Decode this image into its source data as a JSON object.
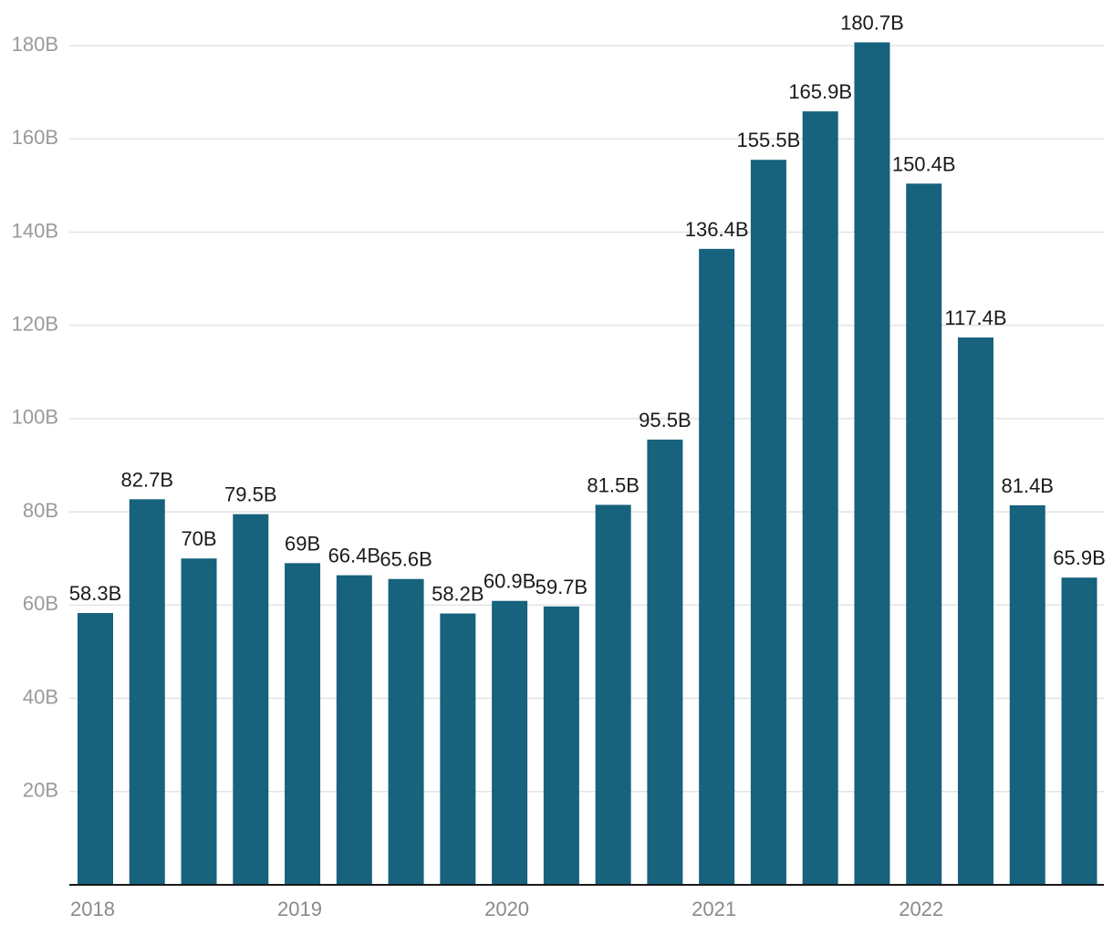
{
  "chart_data": {
    "type": "bar",
    "title": "",
    "xlabel": "",
    "ylabel": "",
    "ylim": [
      0,
      180
    ],
    "y_ticks": [
      20,
      40,
      60,
      80,
      100,
      120,
      140,
      160,
      180
    ],
    "y_tick_labels": [
      "20B",
      "40B",
      "60B",
      "80B",
      "100B",
      "120B",
      "140B",
      "160B",
      "180B"
    ],
    "x_tick_labels": [
      "2018",
      "2019",
      "2020",
      "2021",
      "2022"
    ],
    "grid": true,
    "bar_color": "#17627d",
    "values": [
      58.3,
      82.7,
      70,
      79.5,
      69,
      66.4,
      65.6,
      58.2,
      60.9,
      59.7,
      81.5,
      95.5,
      136.4,
      155.5,
      165.9,
      180.7,
      150.4,
      117.4,
      81.4,
      65.9
    ],
    "value_labels": [
      "58.3B",
      "82.7B",
      "70B",
      "79.5B",
      "69B",
      "66.4B",
      "65.6B",
      "58.2B",
      "60.9B",
      "59.7B",
      "81.5B",
      "95.5B",
      "136.4B",
      "155.5B",
      "165.9B",
      "180.7B",
      "150.4B",
      "117.4B",
      "81.4B",
      "65.9B"
    ]
  }
}
